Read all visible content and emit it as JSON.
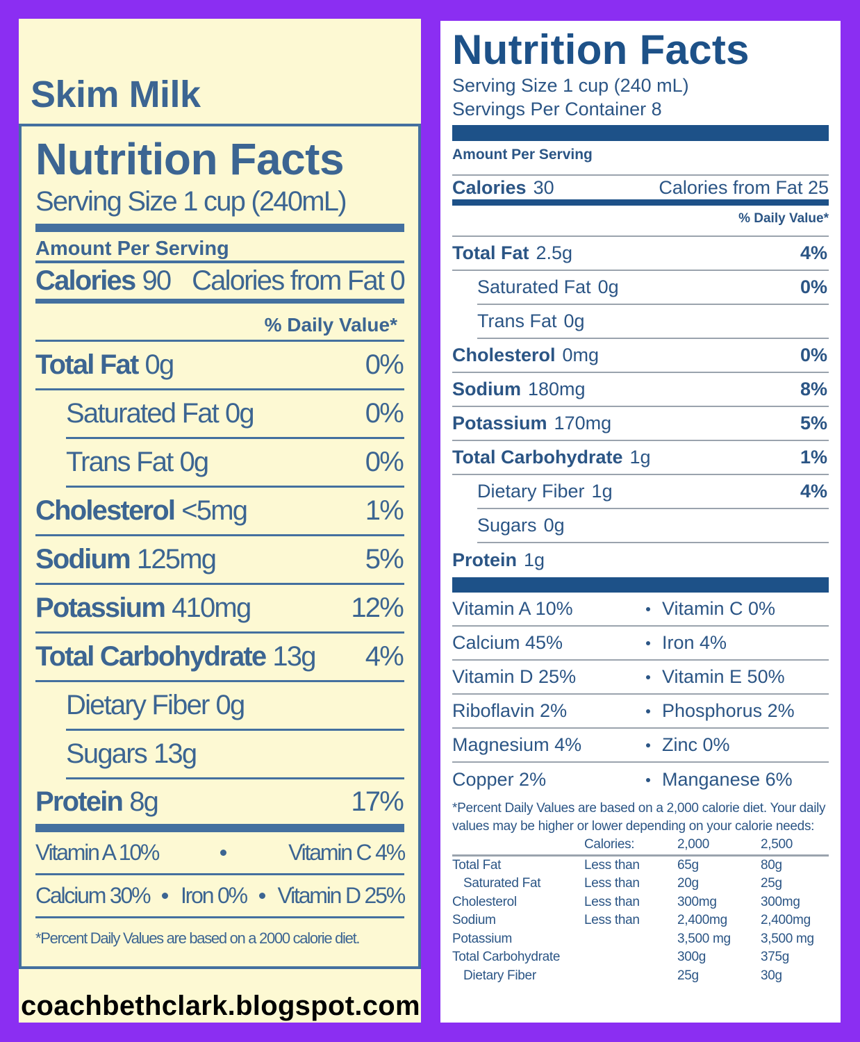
{
  "left_label": {
    "product": "Skim Milk",
    "title": "Nutrition Facts",
    "serving_size": "Serving Size 1 cup (240mL)",
    "amount_per_serving": "Amount Per Serving",
    "calories": {
      "label": "Calories",
      "value": "90"
    },
    "calories_from_fat": "Calories from Fat 0",
    "daily_value_header": "% Daily Value*",
    "nutrients": [
      {
        "name": "Total Fat",
        "amount": "0g",
        "daily_value": "0%",
        "sub": [
          {
            "name": "Saturated Fat",
            "amount": "0g",
            "daily_value": "0%"
          },
          {
            "name": "Trans Fat",
            "amount": "0g",
            "daily_value": "0%"
          }
        ]
      },
      {
        "name": "Cholesterol",
        "amount": "<5mg",
        "daily_value": "1%"
      },
      {
        "name": "Sodium",
        "amount": "125mg",
        "daily_value": "5%"
      },
      {
        "name": "Potassium",
        "amount": "410mg",
        "daily_value": "12%"
      },
      {
        "name": "Total Carbohydrate",
        "amount": "13g",
        "daily_value": "4%",
        "sub": [
          {
            "name": "Dietary Fiber",
            "amount": "0g"
          },
          {
            "name": "Sugars",
            "amount": "13g"
          }
        ]
      },
      {
        "name": "Protein",
        "amount": "8g",
        "daily_value": "17%"
      }
    ],
    "vitamin_lines": [
      [
        "Vitamin A 10%",
        "Vitamin C 4%"
      ],
      [
        "Calcium 30%",
        "Iron 0%",
        "Vitamin D 25%"
      ]
    ],
    "footnote": "*Percent Daily Values are based on a 2000 calorie diet."
  },
  "right_label": {
    "title": "Nutrition Facts",
    "serving_size": "Serving Size 1 cup (240 mL)",
    "servings_per_container": "Servings Per Container 8",
    "amount_per_serving": "Amount Per Serving",
    "calories": {
      "label": "Calories",
      "value": "30"
    },
    "calories_from_fat": "Calories from Fat 25",
    "daily_value_header": "% Daily Value*",
    "nutrients": [
      {
        "name": "Total Fat",
        "amount": "2.5g",
        "daily_value": "4%",
        "sub": [
          {
            "name": "Saturated Fat",
            "amount": "0g",
            "daily_value": "0%"
          },
          {
            "name": "Trans Fat",
            "amount": "0g"
          }
        ]
      },
      {
        "name": "Cholesterol",
        "amount": "0mg",
        "daily_value": "0%"
      },
      {
        "name": "Sodium",
        "amount": "180mg",
        "daily_value": "8%"
      },
      {
        "name": "Potassium",
        "amount": "170mg",
        "daily_value": "5%"
      },
      {
        "name": "Total Carbohydrate",
        "amount": "1g",
        "daily_value": "1%",
        "sub": [
          {
            "name": "Dietary Fiber",
            "amount": "1g",
            "daily_value": "4%"
          },
          {
            "name": "Sugars",
            "amount": "0g"
          }
        ]
      },
      {
        "name": "Protein",
        "amount": "1g"
      }
    ],
    "vitamin_lines": [
      [
        "Vitamin A 10%",
        "Vitamin C 0%"
      ],
      [
        "Calcium 45%",
        "Iron 4%"
      ],
      [
        "Vitamin D 25%",
        "Vitamin E 50%"
      ],
      [
        "Riboflavin 2%",
        "Phosphorus 2%"
      ],
      [
        "Magnesium 4%",
        "Zinc 0%"
      ],
      [
        "Copper 2%",
        "Manganese 6%"
      ]
    ],
    "footnote": "*Percent Daily Values are based on a 2,000 calorie diet. Your daily values may be higher or lower depending on your calorie needs:",
    "reference_table": {
      "header": {
        "label": "Calories:",
        "values": [
          "2,000",
          "2,500"
        ]
      },
      "rows": [
        {
          "name": "Total Fat",
          "qualifier": "Less than",
          "values": [
            "65g",
            "80g"
          ],
          "sub": [
            {
              "name": "Saturated Fat",
              "qualifier": "Less than",
              "values": [
                "20g",
                "25g"
              ]
            }
          ]
        },
        {
          "name": "Cholesterol",
          "qualifier": "Less than",
          "values": [
            "300mg",
            "300mg"
          ]
        },
        {
          "name": "Sodium",
          "qualifier": "Less than",
          "values": [
            "2,400mg",
            "2,400mg"
          ]
        },
        {
          "name": "Potassium",
          "values": [
            "3,500 mg",
            "3,500 mg"
          ]
        },
        {
          "name": "Total Carbohydrate",
          "values": [
            "300g",
            "375g"
          ],
          "sub": [
            {
              "name": "Dietary Fiber",
              "values": [
                "25g",
                "30g"
              ]
            }
          ]
        }
      ]
    }
  },
  "watermark": "coachbethclark.blogspot.com"
}
